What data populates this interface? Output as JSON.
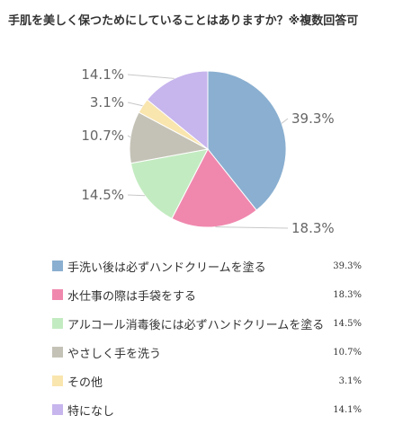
{
  "chart_data": {
    "type": "pie",
    "title": "手肌を美しく保つためにしていることはありますか？※複数回答可",
    "categories": [
      "手洗い後は必ずハンドクリームを塗る",
      "水仕事の際は手袋をする",
      "アルコール消毒後には必ずハンドクリームを塗る",
      "やさしく手を洗う",
      "その他",
      "特になし"
    ],
    "values": [
      39.3,
      18.3,
      14.5,
      10.7,
      3.1,
      14.1
    ],
    "value_labels": [
      "39.3%",
      "18.3%",
      "14.5%",
      "10.7%",
      "3.1%",
      "14.1%"
    ],
    "colors": [
      "#8aafd0",
      "#f088ae",
      "#c3ebc1",
      "#c4c2b6",
      "#f9e5ae",
      "#c7b5ed"
    ],
    "legend_position": "bottom"
  }
}
